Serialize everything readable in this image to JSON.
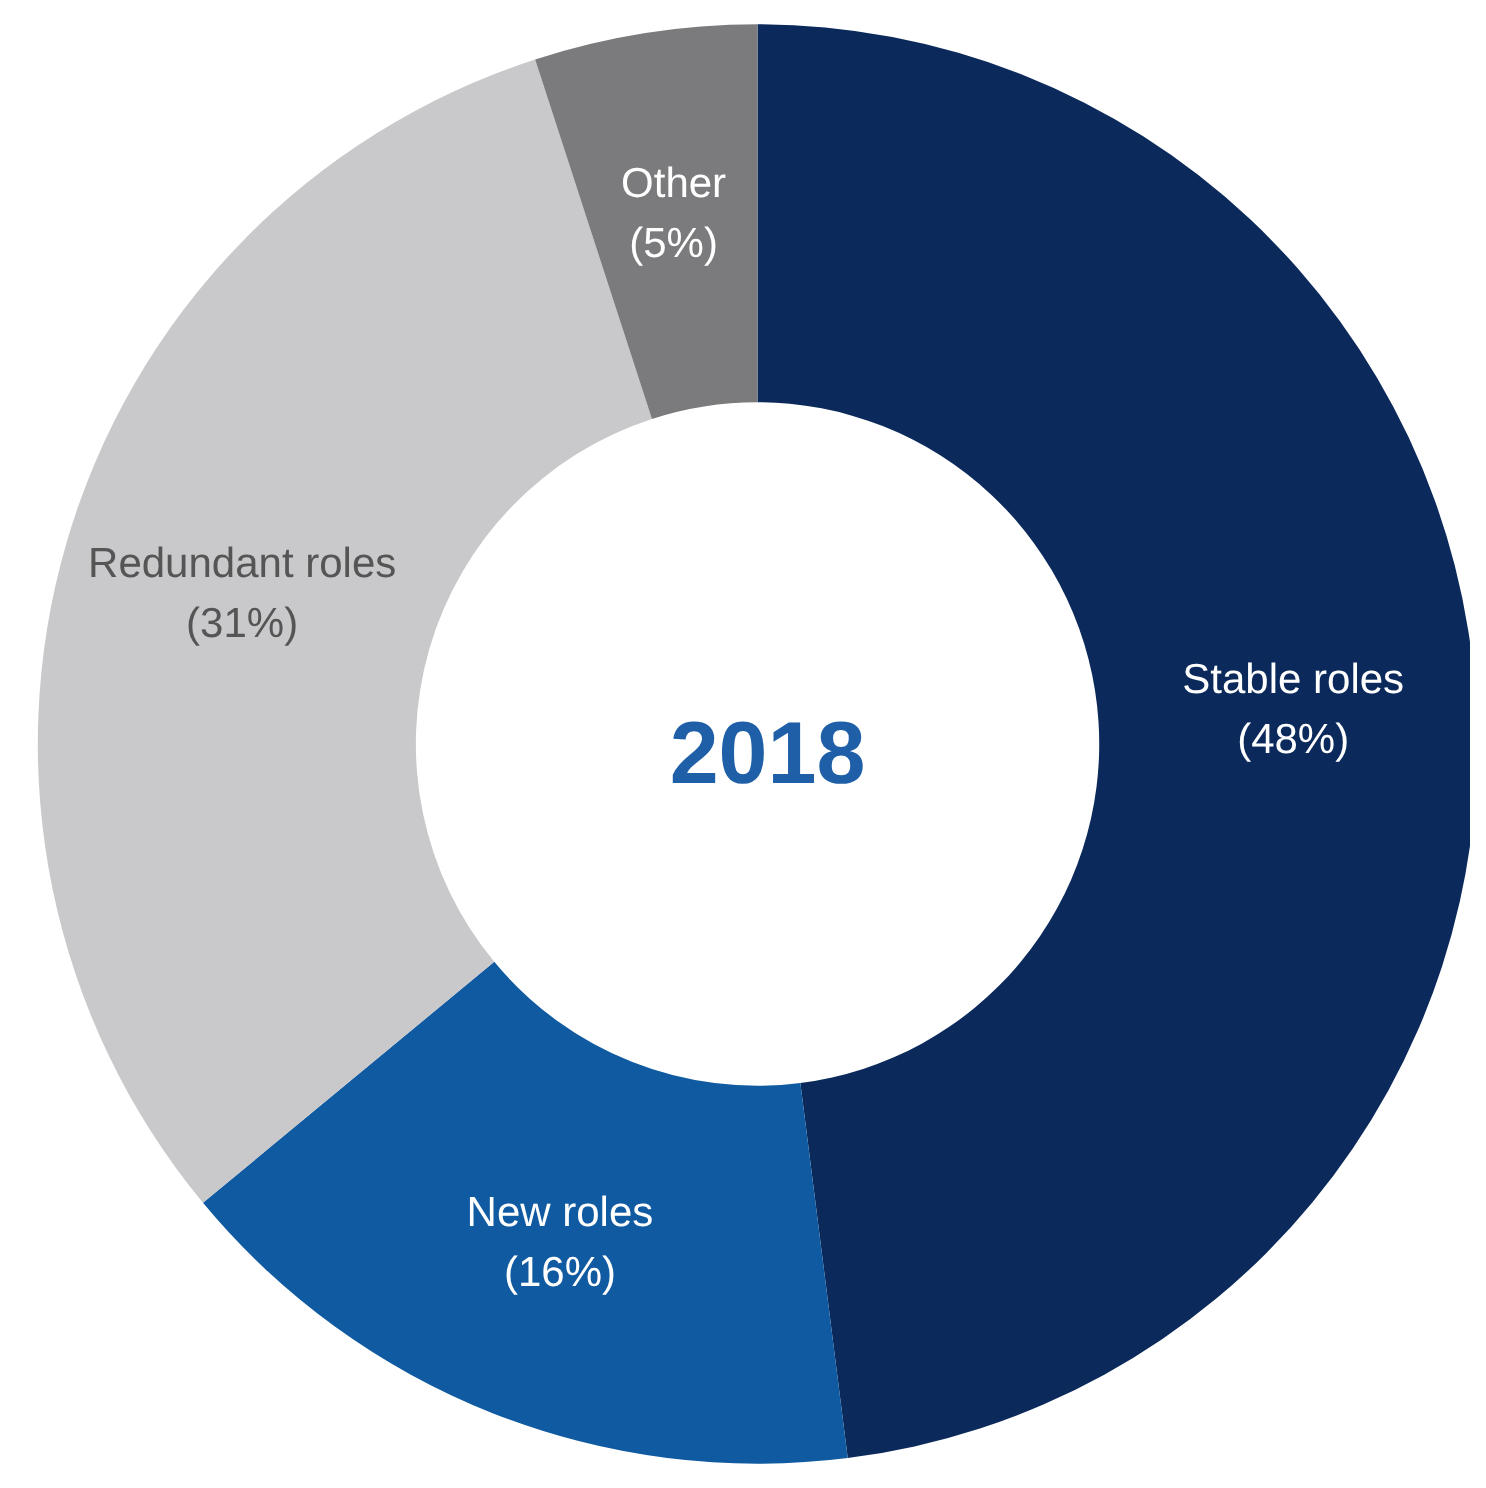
{
  "chart_data": {
    "type": "donut",
    "title": "2018",
    "categories": [
      "Stable roles",
      "New roles",
      "Redundant roles",
      "Other"
    ],
    "values": [
      48,
      16,
      31,
      5
    ],
    "colors": [
      "#0b2a5b",
      "#0f5aa0",
      "#c9c9cb",
      "#7b7b7d"
    ],
    "value_labels": [
      "(48%)",
      "(16%)",
      "(31%)",
      "(5%)"
    ],
    "legend": false
  }
}
